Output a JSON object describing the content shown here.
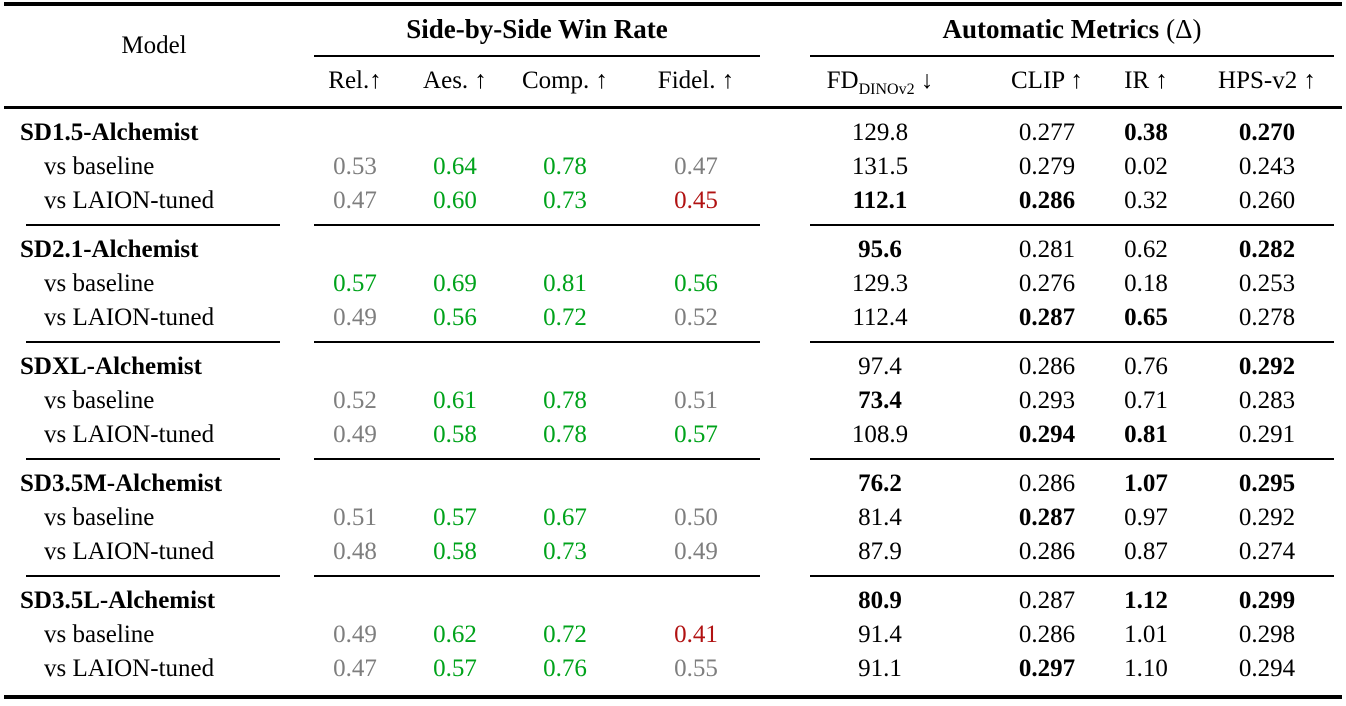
{
  "colors": {
    "green": "#00A31B",
    "red": "#B11212",
    "gray": "#7E7E7E",
    "black": "#000000"
  },
  "header": {
    "model": "Model",
    "win_group": "Side-by-Side Win Rate",
    "metrics_group": "Automatic Metrics",
    "metrics_delta": "(Δ)",
    "cols": [
      "Rel.↑",
      "Aes. ↑",
      "Comp. ↑",
      "Fidel. ↑",
      "CLIP ↑",
      "IR ↑",
      "HPS-v2 ↑"
    ],
    "fd": {
      "base": "FD",
      "sub": "DINOv2",
      "arrow": " ↓"
    }
  },
  "groups": [
    {
      "rows": [
        {
          "label": "SD1.5-Alchemist",
          "type": "main",
          "cells": [
            {
              "t": ""
            },
            {
              "t": ""
            },
            {
              "t": ""
            },
            {
              "t": ""
            },
            {
              "t": "129.8"
            },
            {
              "t": "0.277"
            },
            {
              "t": "0.38",
              "b": true
            },
            {
              "t": "0.270",
              "b": true
            }
          ]
        },
        {
          "label": "vs baseline",
          "type": "sub",
          "cells": [
            {
              "t": "0.53",
              "c": "gray"
            },
            {
              "t": "0.64",
              "c": "green"
            },
            {
              "t": "0.78",
              "c": "green"
            },
            {
              "t": "0.47",
              "c": "gray"
            },
            {
              "t": "131.5"
            },
            {
              "t": "0.279"
            },
            {
              "t": "0.02"
            },
            {
              "t": "0.243"
            }
          ]
        },
        {
          "label": "vs LAION-tuned",
          "type": "sub",
          "cells": [
            {
              "t": "0.47",
              "c": "gray"
            },
            {
              "t": "0.60",
              "c": "green"
            },
            {
              "t": "0.73",
              "c": "green"
            },
            {
              "t": "0.45",
              "c": "red"
            },
            {
              "t": "112.1",
              "b": true
            },
            {
              "t": "0.286",
              "b": true
            },
            {
              "t": "0.32"
            },
            {
              "t": "0.260"
            }
          ]
        }
      ]
    },
    {
      "rows": [
        {
          "label": "SD2.1-Alchemist",
          "type": "main",
          "cells": [
            {
              "t": ""
            },
            {
              "t": ""
            },
            {
              "t": ""
            },
            {
              "t": ""
            },
            {
              "t": "95.6",
              "b": true
            },
            {
              "t": "0.281"
            },
            {
              "t": "0.62"
            },
            {
              "t": "0.282",
              "b": true
            }
          ]
        },
        {
          "label": "vs baseline",
          "type": "sub",
          "cells": [
            {
              "t": "0.57",
              "c": "green"
            },
            {
              "t": "0.69",
              "c": "green"
            },
            {
              "t": "0.81",
              "c": "green"
            },
            {
              "t": "0.56",
              "c": "green"
            },
            {
              "t": "129.3"
            },
            {
              "t": "0.276"
            },
            {
              "t": "0.18"
            },
            {
              "t": "0.253"
            }
          ]
        },
        {
          "label": "vs LAION-tuned",
          "type": "sub",
          "cells": [
            {
              "t": "0.49",
              "c": "gray"
            },
            {
              "t": "0.56",
              "c": "green"
            },
            {
              "t": "0.72",
              "c": "green"
            },
            {
              "t": "0.52",
              "c": "gray"
            },
            {
              "t": "112.4"
            },
            {
              "t": "0.287",
              "b": true
            },
            {
              "t": "0.65",
              "b": true
            },
            {
              "t": "0.278"
            }
          ]
        }
      ]
    },
    {
      "rows": [
        {
          "label": "SDXL-Alchemist",
          "type": "main",
          "cells": [
            {
              "t": ""
            },
            {
              "t": ""
            },
            {
              "t": ""
            },
            {
              "t": ""
            },
            {
              "t": "97.4"
            },
            {
              "t": "0.286"
            },
            {
              "t": "0.76"
            },
            {
              "t": "0.292",
              "b": true
            }
          ]
        },
        {
          "label": "vs baseline",
          "type": "sub",
          "cells": [
            {
              "t": "0.52",
              "c": "gray"
            },
            {
              "t": "0.61",
              "c": "green"
            },
            {
              "t": "0.78",
              "c": "green"
            },
            {
              "t": "0.51",
              "c": "gray"
            },
            {
              "t": "73.4",
              "b": true
            },
            {
              "t": "0.293"
            },
            {
              "t": "0.71"
            },
            {
              "t": "0.283"
            }
          ]
        },
        {
          "label": "vs LAION-tuned",
          "type": "sub",
          "cells": [
            {
              "t": "0.49",
              "c": "gray"
            },
            {
              "t": "0.58",
              "c": "green"
            },
            {
              "t": "0.78",
              "c": "green"
            },
            {
              "t": "0.57",
              "c": "green"
            },
            {
              "t": "108.9"
            },
            {
              "t": "0.294",
              "b": true
            },
            {
              "t": "0.81",
              "b": true
            },
            {
              "t": "0.291"
            }
          ]
        }
      ]
    },
    {
      "rows": [
        {
          "label": "SD3.5M-Alchemist",
          "type": "main",
          "cells": [
            {
              "t": ""
            },
            {
              "t": ""
            },
            {
              "t": ""
            },
            {
              "t": ""
            },
            {
              "t": "76.2",
              "b": true
            },
            {
              "t": "0.286"
            },
            {
              "t": "1.07",
              "b": true
            },
            {
              "t": "0.295",
              "b": true
            }
          ]
        },
        {
          "label": "vs baseline",
          "type": "sub",
          "cells": [
            {
              "t": "0.51",
              "c": "gray"
            },
            {
              "t": "0.57",
              "c": "green"
            },
            {
              "t": "0.67",
              "c": "green"
            },
            {
              "t": "0.50",
              "c": "gray"
            },
            {
              "t": "81.4"
            },
            {
              "t": "0.287",
              "b": true
            },
            {
              "t": "0.97"
            },
            {
              "t": "0.292"
            }
          ]
        },
        {
          "label": "vs LAION-tuned",
          "type": "sub",
          "cells": [
            {
              "t": "0.48",
              "c": "gray"
            },
            {
              "t": "0.58",
              "c": "green"
            },
            {
              "t": "0.73",
              "c": "green"
            },
            {
              "t": "0.49",
              "c": "gray"
            },
            {
              "t": "87.9"
            },
            {
              "t": "0.286"
            },
            {
              "t": "0.87"
            },
            {
              "t": "0.274"
            }
          ]
        }
      ]
    },
    {
      "rows": [
        {
          "label": "SD3.5L-Alchemist",
          "type": "main",
          "cells": [
            {
              "t": ""
            },
            {
              "t": ""
            },
            {
              "t": ""
            },
            {
              "t": ""
            },
            {
              "t": "80.9",
              "b": true
            },
            {
              "t": "0.287"
            },
            {
              "t": "1.12",
              "b": true
            },
            {
              "t": "0.299",
              "b": true
            }
          ]
        },
        {
          "label": "vs baseline",
          "type": "sub",
          "cells": [
            {
              "t": "0.49",
              "c": "gray"
            },
            {
              "t": "0.62",
              "c": "green"
            },
            {
              "t": "0.72",
              "c": "green"
            },
            {
              "t": "0.41",
              "c": "red"
            },
            {
              "t": "91.4"
            },
            {
              "t": "0.286"
            },
            {
              "t": "1.01"
            },
            {
              "t": "0.298"
            }
          ]
        },
        {
          "label": "vs LAION-tuned",
          "type": "sub",
          "cells": [
            {
              "t": "0.47",
              "c": "gray"
            },
            {
              "t": "0.57",
              "c": "green"
            },
            {
              "t": "0.76",
              "c": "green"
            },
            {
              "t": "0.55",
              "c": "gray"
            },
            {
              "t": "91.1"
            },
            {
              "t": "0.297",
              "b": true
            },
            {
              "t": "1.10"
            },
            {
              "t": "0.294"
            }
          ]
        }
      ]
    }
  ]
}
